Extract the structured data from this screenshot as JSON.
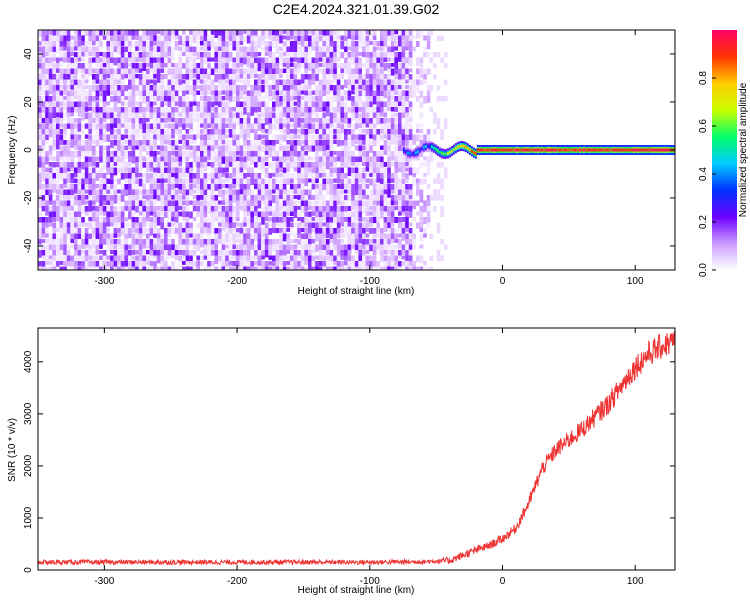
{
  "title": "C2E4.2024.321.01.39.G02",
  "chart_data": [
    {
      "type": "heatmap",
      "xlabel": "Height of straight line (km)",
      "ylabel": "Frequency (Hz)",
      "xlim": [
        -350,
        130
      ],
      "ylim": [
        -50,
        50
      ],
      "xticks": [
        -300,
        -200,
        -100,
        0,
        100
      ],
      "yticks": [
        -40,
        -20,
        0,
        20,
        40
      ],
      "grid": false,
      "noise_region_x": [
        -350,
        -55
      ],
      "signal_band_x": [
        -75,
        130
      ],
      "signal_frequency": 0,
      "colorbar": {
        "label": "Normalized spectral amplitude",
        "range": [
          0,
          1
        ],
        "ticks": [
          "0.0",
          "0.2",
          "0.4",
          "0.6",
          "0.8"
        ],
        "tick_values": [
          0,
          0.2,
          0.4,
          0.6,
          0.8
        ],
        "colors": [
          "#ffffff",
          "#cc99ff",
          "#6a00ff",
          "#0033ff",
          "#00ccff",
          "#00ff66",
          "#ccff00",
          "#ffcc00",
          "#ff3300",
          "#ff0066"
        ]
      }
    },
    {
      "type": "line",
      "xlabel": "Height of straight line (km)",
      "ylabel": "SNR (10 * v/v)",
      "xlim": [
        -350,
        130
      ],
      "ylim": [
        0,
        4650
      ],
      "xticks": [
        -300,
        -200,
        -100,
        0,
        100
      ],
      "yticks": [
        0,
        1000,
        2000,
        3000,
        4000
      ],
      "grid": false,
      "color": "#ee3333",
      "x": [
        -350,
        -300,
        -250,
        -200,
        -150,
        -100,
        -60,
        -40,
        -30,
        -20,
        -10,
        0,
        10,
        20,
        30,
        40,
        50,
        60,
        70,
        80,
        90,
        100,
        110,
        120,
        130
      ],
      "values": [
        150,
        150,
        150,
        150,
        150,
        150,
        160,
        180,
        280,
        380,
        470,
        600,
        800,
        1300,
        1950,
        2300,
        2500,
        2700,
        2950,
        3200,
        3550,
        3900,
        4150,
        4300,
        4400
      ]
    }
  ]
}
